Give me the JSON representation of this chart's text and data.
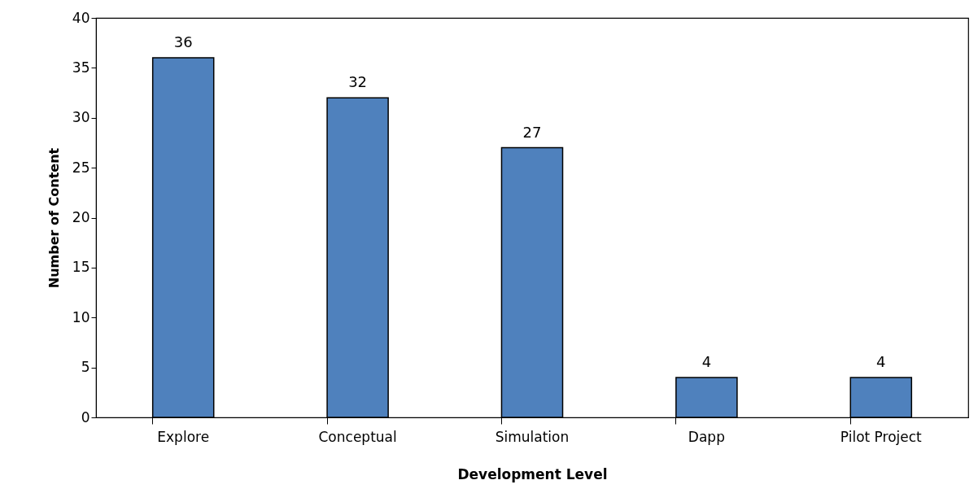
{
  "chart_data": {
    "type": "bar",
    "xlabel": "Development Level",
    "ylabel": "Number of Content",
    "categories": [
      "Explore",
      "Conceptual",
      "Simulation",
      "Dapp",
      "Pilot Project"
    ],
    "values": [
      36,
      32,
      27,
      4,
      4
    ],
    "color": "#4f81bd",
    "ylim": [
      0,
      40
    ],
    "yticks": [
      0,
      5,
      10,
      15,
      20,
      25,
      30,
      35,
      40
    ],
    "grid": false,
    "data_labels": true
  }
}
